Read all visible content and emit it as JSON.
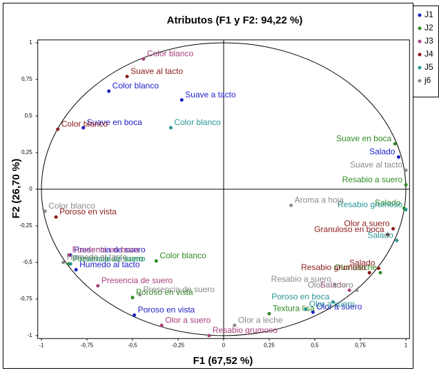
{
  "chart_data": {
    "type": "scatter",
    "title": "Atributos (F1 y F2: 94,22 %)",
    "x_label": "F1 (67,52 %)",
    "y_label": "F2 (26,70 %)",
    "xlim": [
      -1.02,
      1.02
    ],
    "ylim": [
      -1.02,
      1.02
    ],
    "xticks": [
      {
        "value": -1,
        "label": "-1"
      },
      {
        "value": -0.75,
        "label": "-0,75"
      },
      {
        "value": -0.5,
        "label": "-0,5"
      },
      {
        "value": -0.25,
        "label": "-0,25"
      },
      0,
      {
        "value": 0.25,
        "label": "0,25"
      },
      {
        "value": 0.5,
        "label": "0,5"
      },
      {
        "value": 0.75,
        "label": "0,75"
      },
      1
    ],
    "yticks": [
      {
        "value": -1,
        "label": "-1"
      },
      {
        "value": -0.75,
        "label": "-0,75"
      },
      {
        "value": -0.5,
        "label": "-0,5"
      },
      {
        "value": -0.25,
        "label": "-0,25"
      },
      0,
      {
        "value": 0.25,
        "label": "0,25"
      },
      {
        "value": 0.5,
        "label": "0,5"
      },
      {
        "value": 0.75,
        "label": "0,75"
      },
      1
    ],
    "legend": "right",
    "series": [
      {
        "name": "J1",
        "color": "#1c1cc8",
        "x": [
          -0.63,
          -0.23,
          -0.77,
          0.96,
          -0.84,
          -0.81,
          -0.49,
          0.49
        ],
        "values": [
          0.67,
          0.61,
          0.42,
          0.22,
          -0.45,
          -0.55,
          -0.86,
          -0.84
        ],
        "labels": [
          "Color blanco",
          "Suave a tacto",
          "Suave en boca",
          "Salado",
          "Presencia de suero",
          "Humedo al tacto",
          "Poroso en vista",
          "Olor a suero"
        ]
      },
      {
        "name": "J2",
        "color": "#2e8b22",
        "x": [
          0.94,
          1.0,
          0.99,
          -0.37,
          -0.85,
          -0.5,
          0.25,
          0.86
        ],
        "values": [
          0.31,
          0.03,
          -0.13,
          -0.49,
          -0.51,
          -0.74,
          -0.85,
          -0.57
        ],
        "labels": [
          "Suave en boca",
          "Resabio a suero",
          "Salado",
          "Color blanco",
          "Presencia de suero",
          "Poroso en vista",
          "Textura lisa",
          "Olor aleche"
        ]
      },
      {
        "name": "J3",
        "color": "#a8407a",
        "x": [
          -0.44,
          -0.85,
          -0.69,
          -0.34,
          -0.08,
          0.69
        ],
        "values": [
          0.89,
          -0.45,
          -0.66,
          -0.93,
          -1.0,
          -0.69
        ],
        "labels": [
          "Color blanco",
          "Fundente en boca",
          "Presencia de suero",
          "Olor a suero",
          "Resabio grumoso",
          "Salado"
        ]
      },
      {
        "name": "J4",
        "color": "#8b1a1a",
        "x": [
          -0.53,
          -0.91,
          -0.92,
          0.93,
          0.9,
          0.85,
          0.8
        ],
        "values": [
          0.77,
          0.41,
          -0.19,
          -0.27,
          -0.31,
          -0.54,
          -0.57
        ],
        "labels": [
          "Suave al tacto",
          "Color blanco",
          "Poroso en vista",
          "Olor a suero",
          "Granuloso en boca",
          "Salado",
          "Resabio grumoso"
        ]
      },
      {
        "name": "J5",
        "color": "#2a9595",
        "x": [
          -0.29,
          1.0,
          0.95,
          -0.84,
          0.6,
          0.45
        ],
        "values": [
          0.42,
          -0.14,
          -0.35,
          -0.51,
          -0.77,
          -0.82
        ],
        "labels": [
          "Color blanco",
          "Resabio grumoso",
          "Salado",
          "Presencia de suero",
          "Poroso en boca",
          "Olor a suero"
        ]
      },
      {
        "name": "j6",
        "color": "#8a8a8a",
        "x": [
          1.0,
          0.37,
          -0.98,
          -0.88,
          -0.46,
          0.73,
          0.61,
          0.06
        ],
        "values": [
          0.13,
          -0.11,
          -0.15,
          -0.5,
          -0.72,
          -0.69,
          -0.65,
          -0.93
        ],
        "labels": [
          "Suave al tacto",
          "Aroma a hoja",
          "Color blanco",
          "Humedo al tacto",
          "Presencia de suero",
          "Olor a suero",
          "Resabio a suero",
          "Olor a leche"
        ]
      }
    ]
  }
}
